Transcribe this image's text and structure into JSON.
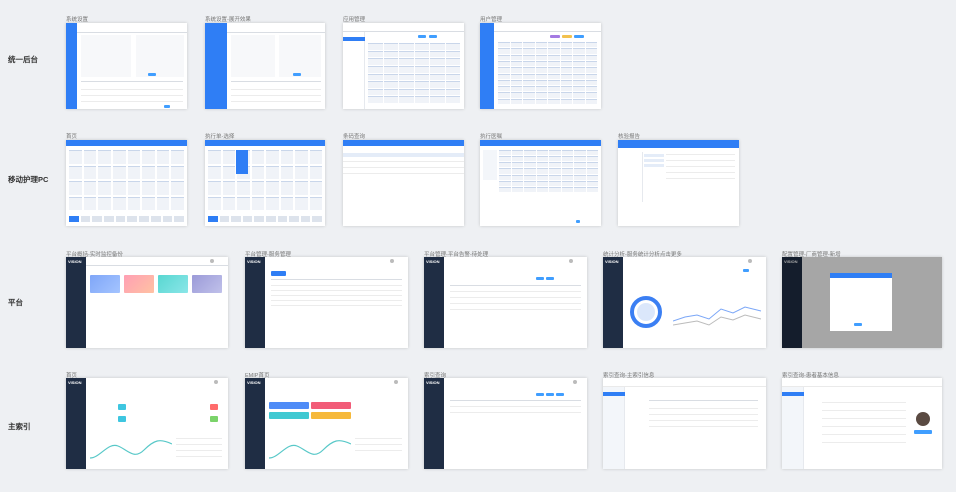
{
  "rows": [
    {
      "label": "统一后台"
    },
    {
      "label": "移动护理PC"
    },
    {
      "label": "平台"
    },
    {
      "label": "主索引"
    }
  ],
  "screens": {
    "r1": [
      "系统设置",
      "系统设置-展开效果",
      "应用管理",
      "用户管理"
    ],
    "r2": [
      "首页",
      "执行单-选择",
      "条码查询",
      "执行医嘱",
      "核验报告"
    ],
    "r3": [
      "平台概括-实时监控备份",
      "平台管理-服务管理",
      "平台管理-平台告警-待处理",
      "统计分析-服务统计分析点击更多",
      "配置管理-厂商管理-新增"
    ],
    "r4": [
      "首页",
      "EMIP首页",
      "索引查询",
      "索引查询-主索引信息",
      "索引查询-患者基本信息"
    ]
  },
  "brand": "VISION",
  "colors": {
    "primary": "#2f7ef5",
    "dark_sidebar": "#1f2d44",
    "background": "#eef0f3"
  }
}
